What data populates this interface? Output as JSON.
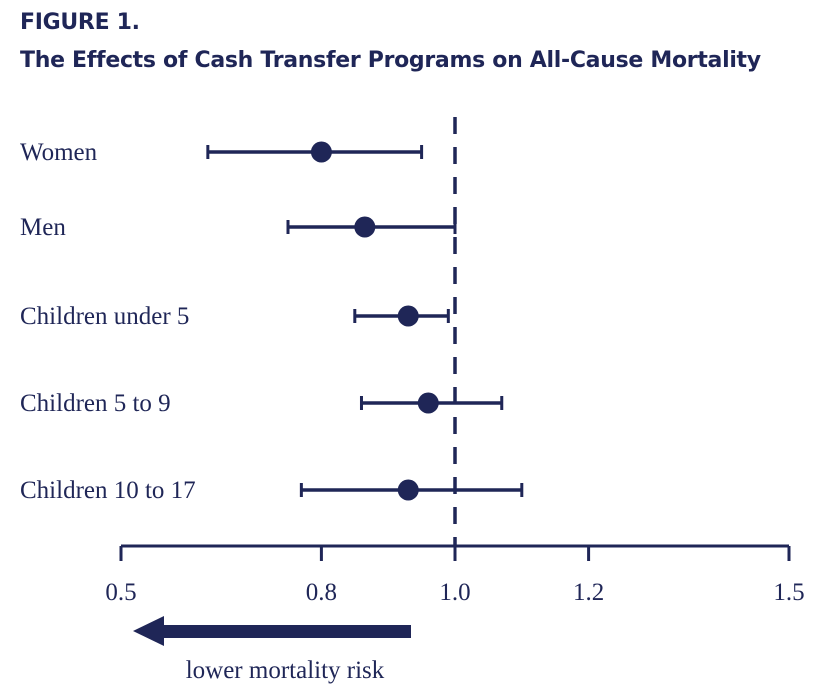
{
  "chart_data": {
    "type": "forest",
    "title": "FIGURE 1.",
    "subtitle": "The Effects of Cash Transfer Programs on All-Cause Mortality",
    "xlim": [
      0.5,
      1.5
    ],
    "xticks": [
      0.5,
      0.8,
      1.0,
      1.2,
      1.5
    ],
    "xtick_labels": [
      "0.5",
      "0.8",
      "1.0",
      "1.2",
      "1.5"
    ],
    "reference_line": 1.0,
    "grid": false,
    "color": "#1f2657",
    "categories": [
      "Women",
      "Men",
      "Children under 5",
      "Children 5 to 9",
      "Children 10 to 17"
    ],
    "estimates": [
      0.8,
      0.865,
      0.93,
      0.96,
      0.93
    ],
    "lower": [
      0.63,
      0.75,
      0.85,
      0.86,
      0.77
    ],
    "upper": [
      0.95,
      1.0,
      0.99,
      1.07,
      1.1
    ],
    "annotation": "lower mortality risk",
    "annotation_icon": "arrow-left-icon"
  }
}
